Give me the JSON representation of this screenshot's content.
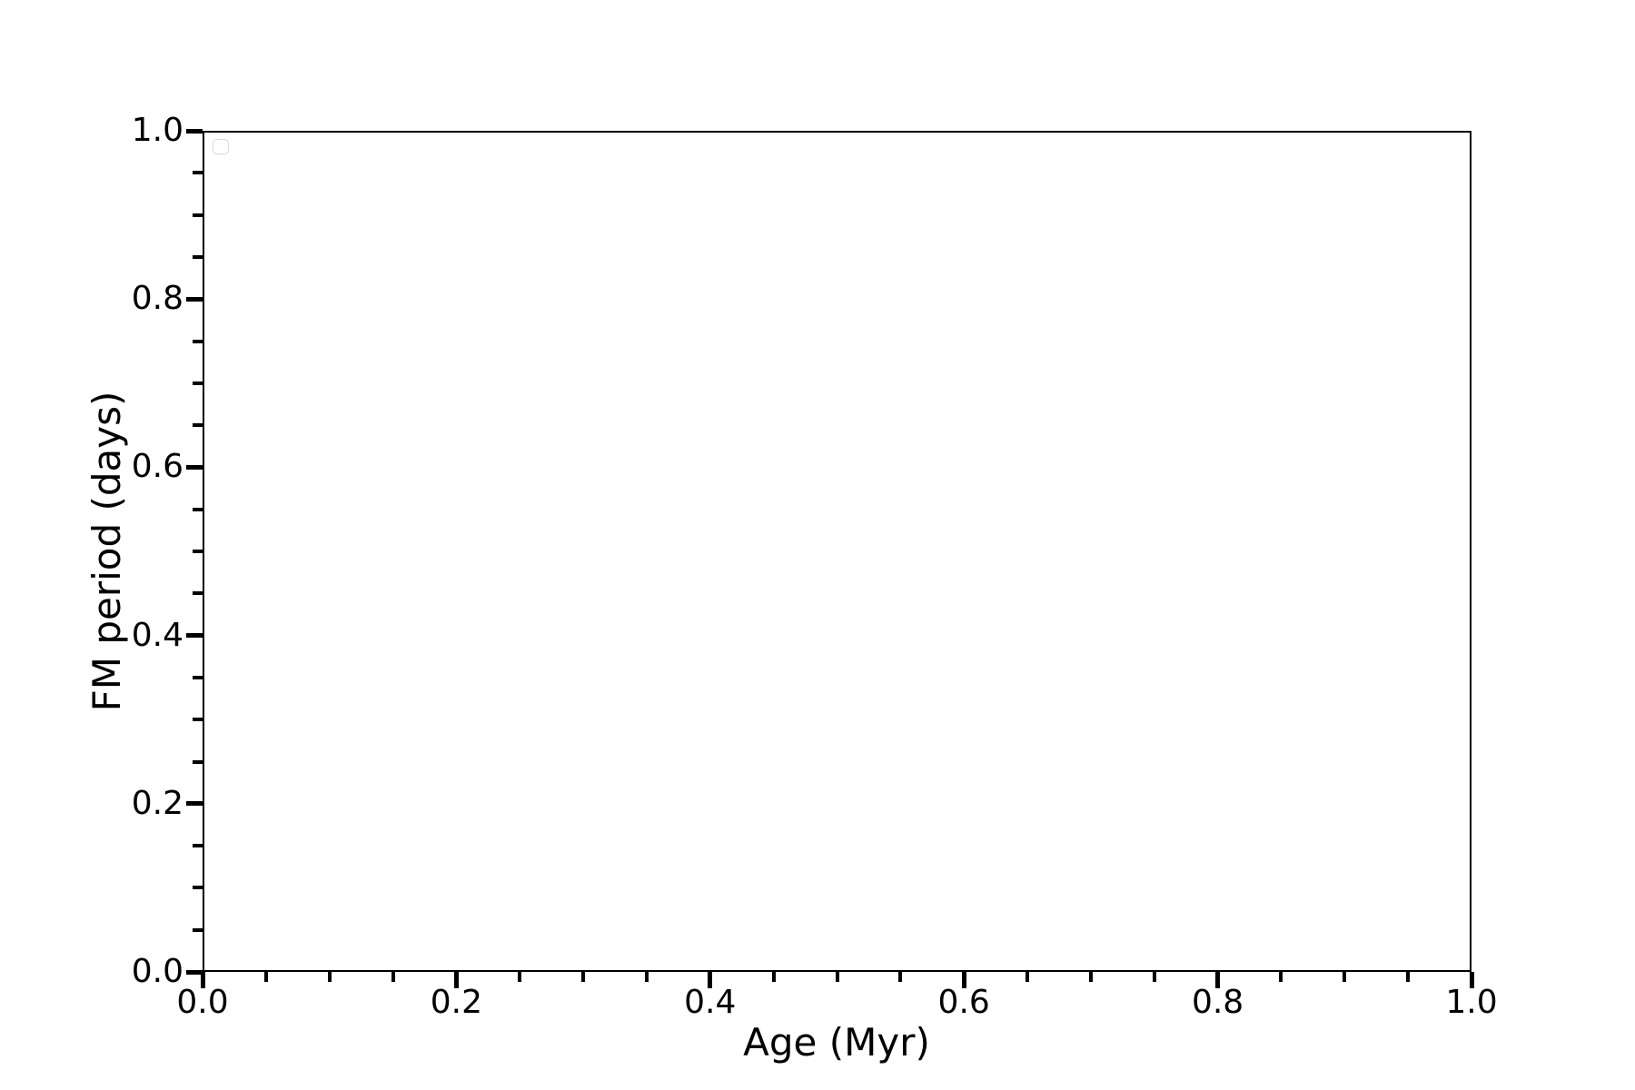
{
  "figure": {
    "background_color": "#ffffff",
    "spine_color": "#000000",
    "text_color": "#000000"
  },
  "legend": {
    "visible": true,
    "position": "upper left",
    "entries": [],
    "border_color": "#d8d8d8",
    "fill_color": "#ffffff"
  },
  "chart_data": {
    "type": "scatter",
    "title": "",
    "xlabel": "Age (Myr)",
    "ylabel": "FM period (days)",
    "xlim": [
      0.0,
      1.0
    ],
    "ylim": [
      0.0,
      1.0
    ],
    "x_major_ticks": [
      0.0,
      0.2,
      0.4,
      0.6,
      0.8,
      1.0
    ],
    "y_major_ticks": [
      0.0,
      0.2,
      0.4,
      0.6,
      0.8,
      1.0
    ],
    "x_tick_labels": [
      "0.0",
      "0.2",
      "0.4",
      "0.6",
      "0.8",
      "1.0"
    ],
    "y_tick_labels": [
      "0.0",
      "0.2",
      "0.4",
      "0.6",
      "0.8",
      "1.0"
    ],
    "minor_tick_interval": 0.05,
    "grid": false,
    "legend_position": "upper left",
    "series": []
  }
}
